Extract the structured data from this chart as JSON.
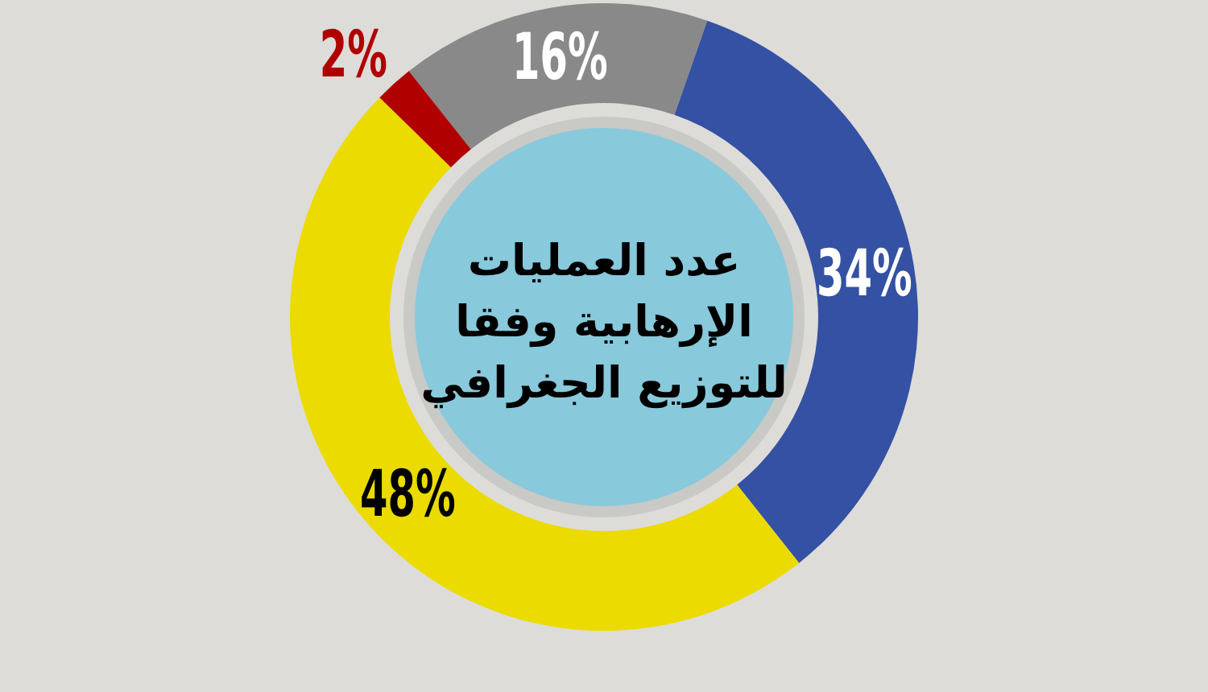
{
  "chart_data": {
    "type": "donut",
    "title": "عدد العمليات الإرهابية وفقا للتوزيع الجغرافي",
    "categories": [
      null,
      null,
      null,
      null
    ],
    "values": [
      16,
      34,
      48,
      2
    ],
    "colors": [
      "#898989",
      "#3451a3",
      "#ebdb00",
      "#b00000"
    ],
    "value_labels": [
      "16%",
      "34%",
      "48%",
      "2%"
    ]
  }
}
